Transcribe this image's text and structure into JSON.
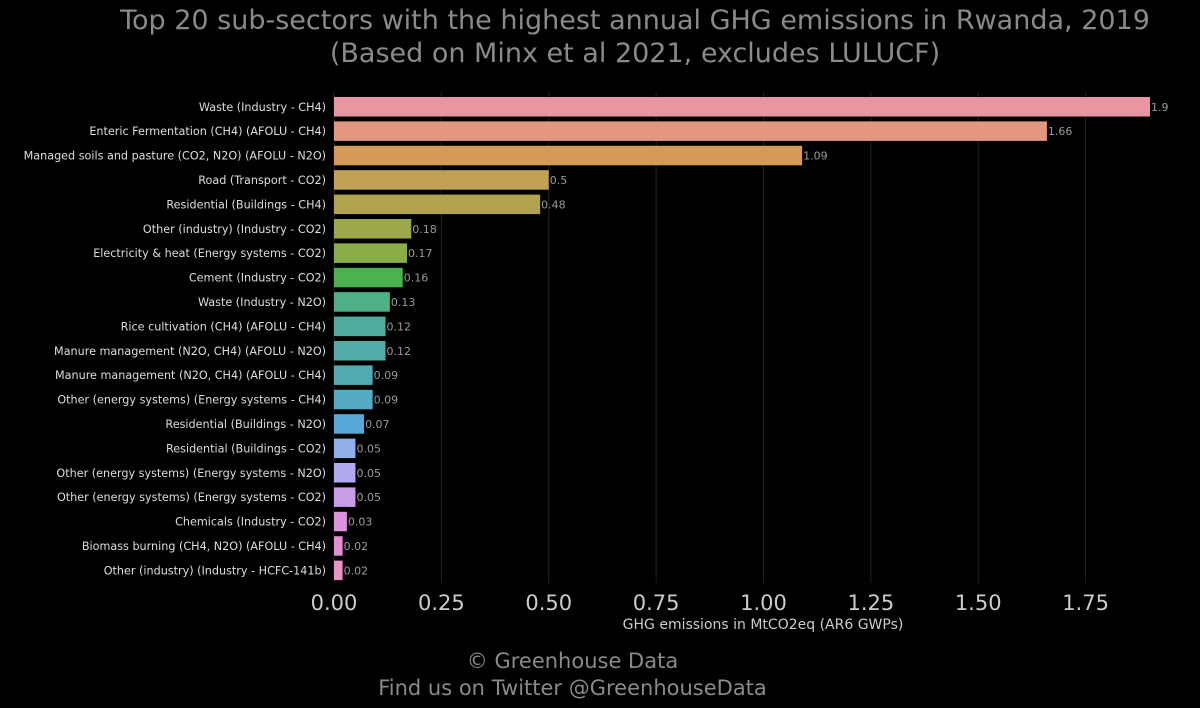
{
  "chart_data": {
    "type": "bar",
    "orientation": "horizontal",
    "title": "Top 20 sub-sectors with the highest annual GHG emissions in Rwanda, 2019",
    "subtitle": "(Based on Minx et al 2021, excludes LULUCF)",
    "xlabel": "GHG emissions in MtCO2eq (AR6 GWPs)",
    "ylabel": "",
    "xlim": [
      0,
      1.9
    ],
    "xticks": [
      "0.00",
      "0.25",
      "0.50",
      "0.75",
      "1.00",
      "1.25",
      "1.50",
      "1.75"
    ],
    "grid": "vertical",
    "categories": [
      "Waste (Industry - CH4)",
      "Enteric Fermentation (CH4) (AFOLU - CH4)",
      "Managed soils and pasture (CO2, N2O) (AFOLU - N2O)",
      "Road (Transport - CO2)",
      "Residential (Buildings - CH4)",
      "Other (industry) (Industry - CO2)",
      "Electricity & heat (Energy systems - CO2)",
      "Cement (Industry - CO2)",
      "Waste (Industry - N2O)",
      "Rice cultivation (CH4) (AFOLU - CH4)",
      "Manure management (N2O, CH4) (AFOLU - N2O)",
      "Manure management (N2O, CH4) (AFOLU - CH4)",
      "Other (energy systems) (Energy systems - CH4)",
      "Residential (Buildings - N2O)",
      "Residential (Buildings - CO2)",
      "Other (energy systems) (Energy systems - N2O)",
      "Other (energy systems) (Energy systems - CO2)",
      "Chemicals (Industry - CO2)",
      "Biomass burning (CH4, N2O) (AFOLU - CH4)",
      "Other (industry) (Industry - HCFC-141b)"
    ],
    "values": [
      1.9,
      1.66,
      1.09,
      0.5,
      0.48,
      0.18,
      0.17,
      0.16,
      0.13,
      0.12,
      0.12,
      0.09,
      0.09,
      0.07,
      0.05,
      0.05,
      0.05,
      0.03,
      0.02,
      0.02
    ],
    "value_labels": [
      "1.9",
      "1.66",
      "1.09",
      "0.5",
      "0.48",
      "0.18",
      "0.17",
      "0.16",
      "0.13",
      "0.12",
      "0.12",
      "0.09",
      "0.09",
      "0.07",
      "0.05",
      "0.05",
      "0.05",
      "0.03",
      "0.02",
      "0.02"
    ],
    "bar_colors": [
      "#e896a1",
      "#e59680",
      "#d69a58",
      "#c0a052",
      "#b0a24e",
      "#9da84c",
      "#8aad4a",
      "#4cb14e",
      "#4fb086",
      "#50ac9c",
      "#52aba6",
      "#52aab0",
      "#54acc2",
      "#56a9d8",
      "#8fb0e8",
      "#b0aaf0",
      "#c79ee6",
      "#dc92dc",
      "#e38fd4",
      "#e894c4"
    ]
  },
  "footer": {
    "copyright": "© Greenhouse Data",
    "twitter": "Find us on Twitter @GreenhouseData"
  },
  "colors": {
    "background": "#000000",
    "text": "#8a8a8a",
    "tick_label": "#cccccc",
    "grid": "#222222"
  }
}
